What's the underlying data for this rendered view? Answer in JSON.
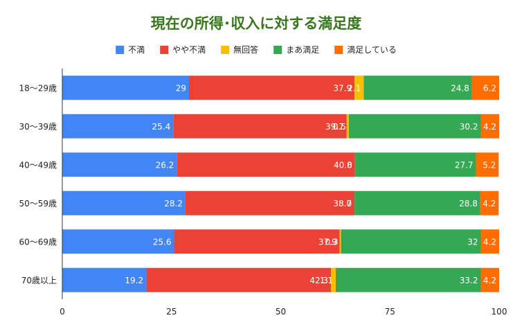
{
  "chart_data": {
    "type": "bar",
    "orientation": "horizontal",
    "stacked": true,
    "title": "現在の所得･収入に対する満足度",
    "categories": [
      "18～29歳",
      "30～39歳",
      "40～49歳",
      "50～59歳",
      "60～69歳",
      "70歳以上"
    ],
    "series": [
      {
        "name": "不満",
        "color": "#4285f4",
        "values": [
          29,
          25.4,
          26.2,
          28.2,
          25.6,
          19.2
        ]
      },
      {
        "name": "やや不満",
        "color": "#ea4335",
        "values": [
          37.9,
          39.7,
          40.8,
          38.7,
          37.9,
          42.3
        ]
      },
      {
        "name": "無回答",
        "color": "#fbbc04",
        "values": [
          2.1,
          0.5,
          0,
          0,
          0.3,
          1.1
        ]
      },
      {
        "name": "まあ満足",
        "color": "#34a853",
        "values": [
          24.8,
          30.2,
          27.7,
          28.8,
          32,
          33.2
        ]
      },
      {
        "name": "満足している",
        "color": "#ff6d01",
        "values": [
          6.2,
          4.2,
          5.2,
          4.2,
          4.2,
          4.2
        ]
      }
    ],
    "xlim": [
      0,
      100
    ],
    "xticks": [
      0,
      25,
      50,
      75,
      100
    ],
    "legend_position": "top",
    "grid": false
  }
}
